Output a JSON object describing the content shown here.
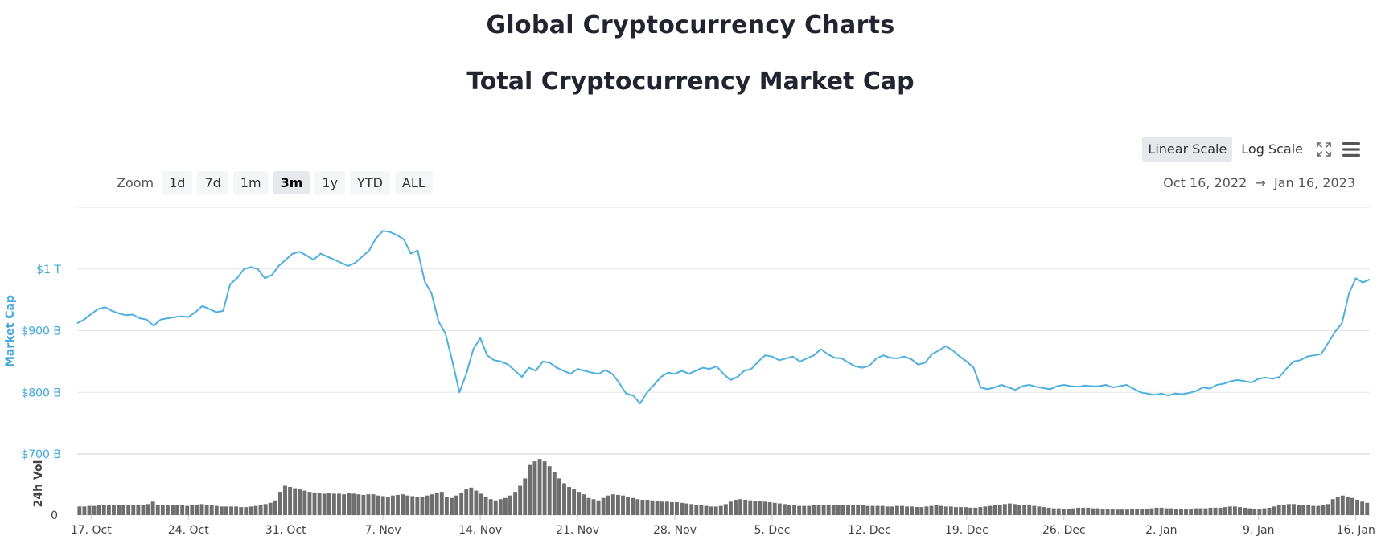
{
  "page": {
    "title": "Global Cryptocurrency Charts",
    "chart_title": "Total Cryptocurrency Market Cap"
  },
  "controls": {
    "scales": [
      {
        "label": "Linear Scale",
        "active": true
      },
      {
        "label": "Log Scale",
        "active": false
      }
    ],
    "fullscreen_icon": "fullscreen-icon",
    "menu_icon": "menu-icon",
    "zoom_label": "Zoom",
    "zoom_options": [
      {
        "label": "1d",
        "active": false
      },
      {
        "label": "7d",
        "active": false
      },
      {
        "label": "1m",
        "active": false
      },
      {
        "label": "3m",
        "active": true
      },
      {
        "label": "1y",
        "active": false
      },
      {
        "label": "YTD",
        "active": false
      },
      {
        "label": "ALL",
        "active": false
      }
    ],
    "date_range_start": "Oct 16, 2022",
    "date_range_arrow": "→",
    "date_range_end": "Jan 16, 2023"
  },
  "chart_data": {
    "type": "line",
    "title": "Total Cryptocurrency Market Cap",
    "line_color": "#4fafdf",
    "volume_color": "#6e6e6e",
    "ylabel": "Market Cap",
    "ylim": [
      700,
      1100
    ],
    "y_ticks": [
      {
        "value": 700,
        "label": "$700 B"
      },
      {
        "value": 800,
        "label": "$800 B"
      },
      {
        "value": 900,
        "label": "$900 B"
      },
      {
        "value": 1000,
        "label": "$1 T"
      }
    ],
    "volume_label": "24h Vol",
    "volume_ticks": [
      {
        "value": 0,
        "label": "0"
      }
    ],
    "x_ticks": [
      {
        "day": 1,
        "label": "17. Oct"
      },
      {
        "day": 8,
        "label": "24. Oct"
      },
      {
        "day": 15,
        "label": "31. Oct"
      },
      {
        "day": 22,
        "label": "7. Nov"
      },
      {
        "day": 29,
        "label": "14. Nov"
      },
      {
        "day": 36,
        "label": "21. Nov"
      },
      {
        "day": 43,
        "label": "28. Nov"
      },
      {
        "day": 50,
        "label": "5. Dec"
      },
      {
        "day": 57,
        "label": "12. Dec"
      },
      {
        "day": 64,
        "label": "19. Dec"
      },
      {
        "day": 71,
        "label": "26. Dec"
      },
      {
        "day": 78,
        "label": "2. Jan"
      },
      {
        "day": 85,
        "label": "9. Jan"
      },
      {
        "day": 92,
        "label": "16. Jan"
      }
    ],
    "x_range": [
      0,
      93
    ],
    "market_cap": [
      [
        0,
        912
      ],
      [
        0.5,
        918
      ],
      [
        1,
        927
      ],
      [
        1.5,
        935
      ],
      [
        2,
        938
      ],
      [
        2.5,
        932
      ],
      [
        3,
        928
      ],
      [
        3.5,
        925
      ],
      [
        4,
        926
      ],
      [
        4.5,
        920
      ],
      [
        5,
        918
      ],
      [
        5.5,
        908
      ],
      [
        6,
        918
      ],
      [
        6.5,
        920
      ],
      [
        7,
        922
      ],
      [
        7.5,
        923
      ],
      [
        8,
        922
      ],
      [
        8.5,
        930
      ],
      [
        9,
        940
      ],
      [
        9.5,
        935
      ],
      [
        10,
        930
      ],
      [
        10.5,
        932
      ],
      [
        11,
        975
      ],
      [
        11.5,
        985
      ],
      [
        12,
        1000
      ],
      [
        12.5,
        1003
      ],
      [
        13,
        1000
      ],
      [
        13.5,
        985
      ],
      [
        14,
        990
      ],
      [
        14.5,
        1005
      ],
      [
        15,
        1015
      ],
      [
        15.5,
        1025
      ],
      [
        16,
        1028
      ],
      [
        16.5,
        1022
      ],
      [
        17,
        1015
      ],
      [
        17.5,
        1025
      ],
      [
        18,
        1020
      ],
      [
        18.5,
        1015
      ],
      [
        19,
        1010
      ],
      [
        19.5,
        1005
      ],
      [
        20,
        1010
      ],
      [
        20.5,
        1020
      ],
      [
        21,
        1030
      ],
      [
        21.5,
        1050
      ],
      [
        22,
        1062
      ],
      [
        22.5,
        1060
      ],
      [
        23,
        1055
      ],
      [
        23.5,
        1048
      ],
      [
        24,
        1025
      ],
      [
        24.5,
        1030
      ],
      [
        25,
        980
      ],
      [
        25.5,
        960
      ],
      [
        26,
        915
      ],
      [
        26.5,
        895
      ],
      [
        27,
        850
      ],
      [
        27.5,
        800
      ],
      [
        28,
        830
      ],
      [
        28.5,
        870
      ],
      [
        29,
        888
      ],
      [
        29.5,
        860
      ],
      [
        30,
        852
      ],
      [
        30.5,
        850
      ],
      [
        31,
        845
      ],
      [
        31.5,
        835
      ],
      [
        32,
        825
      ],
      [
        32.5,
        840
      ],
      [
        33,
        835
      ],
      [
        33.5,
        850
      ],
      [
        34,
        848
      ],
      [
        34.5,
        840
      ],
      [
        35,
        835
      ],
      [
        35.5,
        830
      ],
      [
        36,
        838
      ],
      [
        36.5,
        835
      ],
      [
        37,
        832
      ],
      [
        37.5,
        830
      ],
      [
        38,
        836
      ],
      [
        38.5,
        830
      ],
      [
        39,
        815
      ],
      [
        39.5,
        798
      ],
      [
        40,
        795
      ],
      [
        40.5,
        782
      ],
      [
        41,
        800
      ],
      [
        41.5,
        812
      ],
      [
        42,
        825
      ],
      [
        42.5,
        832
      ],
      [
        43,
        830
      ],
      [
        43.5,
        835
      ],
      [
        44,
        830
      ],
      [
        44.5,
        835
      ],
      [
        45,
        840
      ],
      [
        45.5,
        838
      ],
      [
        46,
        842
      ],
      [
        46.5,
        830
      ],
      [
        47,
        820
      ],
      [
        47.5,
        825
      ],
      [
        48,
        835
      ],
      [
        48.5,
        838
      ],
      [
        49,
        850
      ],
      [
        49.5,
        860
      ],
      [
        50,
        858
      ],
      [
        50.5,
        852
      ],
      [
        51,
        855
      ],
      [
        51.5,
        858
      ],
      [
        52,
        850
      ],
      [
        52.5,
        855
      ],
      [
        53,
        860
      ],
      [
        53.5,
        870
      ],
      [
        54,
        862
      ],
      [
        54.5,
        856
      ],
      [
        55,
        855
      ],
      [
        55.5,
        848
      ],
      [
        56,
        842
      ],
      [
        56.5,
        840
      ],
      [
        57,
        843
      ],
      [
        57.5,
        855
      ],
      [
        58,
        860
      ],
      [
        58.5,
        856
      ],
      [
        59,
        855
      ],
      [
        59.5,
        858
      ],
      [
        60,
        854
      ],
      [
        60.5,
        845
      ],
      [
        61,
        848
      ],
      [
        61.5,
        862
      ],
      [
        62,
        868
      ],
      [
        62.5,
        875
      ],
      [
        63,
        868
      ],
      [
        63.5,
        858
      ],
      [
        64,
        850
      ],
      [
        64.5,
        840
      ],
      [
        65,
        808
      ],
      [
        65.5,
        805
      ],
      [
        66,
        808
      ],
      [
        66.5,
        812
      ],
      [
        67,
        808
      ],
      [
        67.5,
        804
      ],
      [
        68,
        810
      ],
      [
        68.5,
        812
      ],
      [
        69,
        809
      ],
      [
        69.5,
        807
      ],
      [
        70,
        805
      ],
      [
        70.5,
        810
      ],
      [
        71,
        812
      ],
      [
        71.5,
        810
      ],
      [
        72,
        809
      ],
      [
        72.5,
        811
      ],
      [
        73,
        810
      ],
      [
        73.5,
        810
      ],
      [
        74,
        812
      ],
      [
        74.5,
        808
      ],
      [
        75,
        810
      ],
      [
        75.5,
        812
      ],
      [
        76,
        806
      ],
      [
        76.5,
        800
      ],
      [
        77,
        798
      ],
      [
        77.5,
        796
      ],
      [
        78,
        798
      ],
      [
        78.5,
        795
      ],
      [
        79,
        798
      ],
      [
        79.5,
        797
      ],
      [
        80,
        799
      ],
      [
        80.5,
        802
      ],
      [
        81,
        808
      ],
      [
        81.5,
        806
      ],
      [
        82,
        812
      ],
      [
        82.5,
        814
      ],
      [
        83,
        818
      ],
      [
        83.5,
        820
      ],
      [
        84,
        818
      ],
      [
        84.5,
        816
      ],
      [
        85,
        822
      ],
      [
        85.5,
        824
      ],
      [
        86,
        822
      ],
      [
        86.5,
        825
      ],
      [
        87,
        838
      ],
      [
        87.5,
        850
      ],
      [
        88,
        852
      ],
      [
        88.5,
        858
      ],
      [
        89,
        860
      ],
      [
        89.5,
        862
      ],
      [
        90,
        880
      ],
      [
        90.5,
        898
      ],
      [
        91,
        912
      ],
      [
        91.5,
        960
      ],
      [
        92,
        985
      ],
      [
        92.5,
        978
      ],
      [
        93,
        983
      ]
    ],
    "volume": [
      14,
      14,
      15,
      15,
      16,
      16,
      17,
      17,
      17,
      17,
      16,
      16,
      16,
      17,
      18,
      22,
      17,
      16,
      16,
      17,
      17,
      16,
      15,
      16,
      17,
      18,
      17,
      16,
      15,
      14,
      14,
      14,
      14,
      13,
      13,
      14,
      15,
      16,
      18,
      20,
      24,
      38,
      48,
      46,
      44,
      42,
      40,
      38,
      37,
      36,
      35,
      36,
      35,
      35,
      34,
      36,
      35,
      34,
      33,
      34,
      34,
      32,
      31,
      30,
      32,
      33,
      34,
      32,
      31,
      30,
      30,
      32,
      34,
      36,
      38,
      30,
      28,
      32,
      36,
      42,
      45,
      40,
      35,
      30,
      26,
      24,
      26,
      28,
      32,
      38,
      48,
      60,
      82,
      88,
      92,
      88,
      80,
      70,
      60,
      52,
      46,
      42,
      38,
      34,
      28,
      26,
      24,
      28,
      32,
      34,
      33,
      32,
      30,
      28,
      26,
      25,
      25,
      24,
      23,
      22,
      22,
      21,
      21,
      20,
      19,
      18,
      17,
      16,
      15,
      14,
      14,
      15,
      18,
      22,
      25,
      26,
      25,
      24,
      23,
      23,
      22,
      21,
      20,
      19,
      18,
      17,
      16,
      15,
      15,
      15,
      16,
      17,
      17,
      16,
      16,
      16,
      16,
      17,
      17,
      16,
      16,
      15,
      15,
      15,
      15,
      14,
      14,
      15,
      15,
      14,
      14,
      13,
      13,
      14,
      15,
      16,
      15,
      14,
      14,
      13,
      13,
      13,
      12,
      12,
      13,
      14,
      15,
      16,
      17,
      18,
      19,
      18,
      17,
      16,
      16,
      15,
      14,
      13,
      12,
      11,
      11,
      10,
      10,
      11,
      12,
      12,
      12,
      11,
      11,
      10,
      10,
      10,
      9,
      9,
      9,
      10,
      10,
      10,
      10,
      11,
      12,
      12,
      11,
      11,
      10,
      10,
      10,
      10,
      11,
      11,
      11,
      12,
      12,
      12,
      13,
      14,
      14,
      13,
      12,
      11,
      10,
      10,
      11,
      12,
      14,
      16,
      17,
      18,
      18,
      17,
      16,
      16,
      15,
      15,
      16,
      18,
      26,
      30,
      32,
      30,
      28,
      25,
      22,
      20
    ],
    "volume_max": 100
  }
}
